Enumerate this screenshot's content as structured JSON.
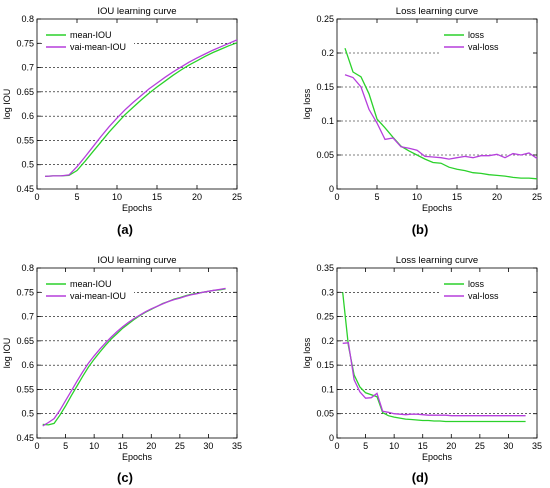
{
  "colors": {
    "series_primary": "#2bd12b",
    "series_secondary": "#b53fdc",
    "axis": "#000000",
    "grid": "#000000"
  },
  "panels": [
    {
      "label": "(a)"
    },
    {
      "label": "(b)"
    },
    {
      "label": "(c)"
    },
    {
      "label": "(d)"
    }
  ],
  "chart_data": [
    {
      "type": "line",
      "title": "IOU learning curve",
      "xlabel": "Epochs",
      "ylabel": "log IOU",
      "xlim": [
        0,
        25
      ],
      "ylim": [
        0.45,
        0.8
      ],
      "xticks": [
        0,
        5,
        10,
        15,
        20,
        25
      ],
      "yticks": [
        0.45,
        0.5,
        0.55,
        0.6,
        0.65,
        0.7,
        0.75,
        0.8
      ],
      "grid": "horizontal",
      "legend_position": "top-left",
      "series": [
        {
          "name": "mean-IOU",
          "color": "#2bd12b",
          "x": [
            1,
            2,
            3,
            4,
            5,
            6,
            7,
            8,
            9,
            10,
            11,
            12,
            13,
            14,
            15,
            16,
            17,
            18,
            19,
            20,
            21,
            22,
            23,
            24,
            25
          ],
          "y": [
            0.476,
            0.477,
            0.477,
            0.478,
            0.488,
            0.507,
            0.527,
            0.547,
            0.567,
            0.585,
            0.603,
            0.618,
            0.633,
            0.647,
            0.66,
            0.672,
            0.684,
            0.695,
            0.705,
            0.714,
            0.723,
            0.731,
            0.738,
            0.745,
            0.751
          ]
        },
        {
          "name": "vai-mean-IOU",
          "color": "#b53fdc",
          "x": [
            1,
            2,
            3,
            4,
            5,
            6,
            7,
            8,
            9,
            10,
            11,
            12,
            13,
            14,
            15,
            16,
            17,
            18,
            19,
            20,
            21,
            22,
            23,
            24,
            25
          ],
          "y": [
            0.476,
            0.477,
            0.477,
            0.479,
            0.496,
            0.516,
            0.537,
            0.558,
            0.578,
            0.596,
            0.613,
            0.628,
            0.642,
            0.656,
            0.668,
            0.68,
            0.691,
            0.701,
            0.711,
            0.72,
            0.728,
            0.736,
            0.743,
            0.75,
            0.757
          ]
        }
      ]
    },
    {
      "type": "line",
      "title": "Loss learning curve",
      "xlabel": "Epochs",
      "ylabel": "log loss",
      "xlim": [
        0,
        25
      ],
      "ylim": [
        0,
        0.25
      ],
      "xticks": [
        0,
        5,
        10,
        15,
        20,
        25
      ],
      "yticks": [
        0,
        0.05,
        0.1,
        0.15,
        0.2,
        0.25
      ],
      "grid": "horizontal",
      "legend_position": "top-right",
      "series": [
        {
          "name": "loss",
          "color": "#2bd12b",
          "x": [
            1,
            2,
            3,
            4,
            5,
            6,
            7,
            8,
            9,
            10,
            11,
            12,
            13,
            14,
            15,
            16,
            17,
            18,
            19,
            20,
            21,
            22,
            23,
            24,
            25
          ],
          "y": [
            0.207,
            0.172,
            0.165,
            0.14,
            0.103,
            0.09,
            0.076,
            0.063,
            0.056,
            0.05,
            0.044,
            0.039,
            0.038,
            0.032,
            0.029,
            0.027,
            0.024,
            0.023,
            0.021,
            0.02,
            0.019,
            0.017,
            0.016,
            0.016,
            0.015
          ]
        },
        {
          "name": "val-loss",
          "color": "#b53fdc",
          "x": [
            1,
            2,
            3,
            4,
            5,
            6,
            7,
            8,
            9,
            10,
            11,
            12,
            13,
            14,
            15,
            16,
            17,
            18,
            19,
            20,
            21,
            22,
            23,
            24,
            25
          ],
          "y": [
            0.168,
            0.164,
            0.15,
            0.117,
            0.097,
            0.073,
            0.075,
            0.062,
            0.06,
            0.057,
            0.048,
            0.047,
            0.046,
            0.044,
            0.046,
            0.048,
            0.046,
            0.049,
            0.049,
            0.051,
            0.046,
            0.052,
            0.05,
            0.053,
            0.045
          ]
        }
      ]
    },
    {
      "type": "line",
      "title": "IOU learning curve",
      "xlabel": "Epochs",
      "ylabel": "log IOU",
      "xlim": [
        0,
        35
      ],
      "ylim": [
        0.45,
        0.8
      ],
      "xticks": [
        0,
        5,
        10,
        15,
        20,
        25,
        30,
        35
      ],
      "yticks": [
        0.45,
        0.5,
        0.55,
        0.6,
        0.65,
        0.7,
        0.75,
        0.8
      ],
      "grid": "horizontal",
      "legend_position": "top-left",
      "series": [
        {
          "name": "mean-IOU",
          "color": "#2bd12b",
          "x": [
            1,
            2,
            3,
            4,
            5,
            6,
            7,
            8,
            9,
            10,
            11,
            12,
            13,
            14,
            15,
            16,
            17,
            18,
            19,
            20,
            21,
            22,
            23,
            24,
            25,
            26,
            27,
            28,
            29,
            30,
            31,
            32,
            33
          ],
          "y": [
            0.478,
            0.477,
            0.48,
            0.497,
            0.516,
            0.537,
            0.557,
            0.577,
            0.596,
            0.612,
            0.627,
            0.641,
            0.654,
            0.665,
            0.676,
            0.685,
            0.694,
            0.702,
            0.709,
            0.715,
            0.721,
            0.727,
            0.731,
            0.736,
            0.739,
            0.743,
            0.746,
            0.748,
            0.75,
            0.752,
            0.754,
            0.755,
            0.757
          ]
        },
        {
          "name": "vai-mean-IOU",
          "color": "#b53fdc",
          "x": [
            1,
            2,
            3,
            4,
            5,
            6,
            7,
            8,
            9,
            10,
            11,
            12,
            13,
            14,
            15,
            16,
            17,
            18,
            19,
            20,
            21,
            22,
            23,
            24,
            25,
            26,
            27,
            28,
            29,
            30,
            31,
            32,
            33
          ],
          "y": [
            0.475,
            0.482,
            0.49,
            0.507,
            0.527,
            0.547,
            0.567,
            0.586,
            0.604,
            0.619,
            0.633,
            0.646,
            0.658,
            0.669,
            0.679,
            0.688,
            0.696,
            0.703,
            0.71,
            0.716,
            0.721,
            0.726,
            0.731,
            0.735,
            0.738,
            0.742,
            0.745,
            0.747,
            0.75,
            0.752,
            0.754,
            0.756,
            0.758
          ]
        }
      ]
    },
    {
      "type": "line",
      "title": "Loss learning curve",
      "xlabel": "Epochs",
      "ylabel": "log loss",
      "xlim": [
        0,
        35
      ],
      "ylim": [
        0,
        0.35
      ],
      "xticks": [
        0,
        5,
        10,
        15,
        20,
        25,
        30,
        35
      ],
      "yticks": [
        0,
        0.05,
        0.1,
        0.15,
        0.2,
        0.25,
        0.3,
        0.35
      ],
      "grid": "horizontal",
      "legend_position": "top-right",
      "series": [
        {
          "name": "loss",
          "color": "#2bd12b",
          "x": [
            1,
            2,
            3,
            4,
            5,
            6,
            7,
            8,
            9,
            10,
            11,
            12,
            13,
            14,
            15,
            16,
            17,
            18,
            19,
            20,
            21,
            22,
            23,
            24,
            25,
            26,
            27,
            28,
            29,
            30,
            31,
            32,
            33
          ],
          "y": [
            0.3,
            0.19,
            0.13,
            0.105,
            0.093,
            0.089,
            0.085,
            0.052,
            0.046,
            0.043,
            0.041,
            0.039,
            0.038,
            0.037,
            0.036,
            0.036,
            0.035,
            0.035,
            0.034,
            0.034,
            0.034,
            0.034,
            0.034,
            0.034,
            0.034,
            0.034,
            0.034,
            0.034,
            0.034,
            0.034,
            0.034,
            0.034,
            0.034
          ]
        },
        {
          "name": "val-loss",
          "color": "#b53fdc",
          "x": [
            1,
            2,
            3,
            4,
            5,
            6,
            7,
            8,
            9,
            10,
            11,
            12,
            13,
            14,
            15,
            16,
            17,
            18,
            19,
            20,
            21,
            22,
            23,
            24,
            25,
            26,
            27,
            28,
            29,
            30,
            31,
            32,
            33
          ],
          "y": [
            0.195,
            0.196,
            0.12,
            0.095,
            0.082,
            0.083,
            0.092,
            0.055,
            0.053,
            0.05,
            0.049,
            0.048,
            0.049,
            0.049,
            0.048,
            0.047,
            0.047,
            0.047,
            0.047,
            0.046,
            0.046,
            0.046,
            0.046,
            0.046,
            0.046,
            0.046,
            0.046,
            0.046,
            0.046,
            0.046,
            0.046,
            0.046,
            0.046
          ]
        }
      ]
    }
  ]
}
